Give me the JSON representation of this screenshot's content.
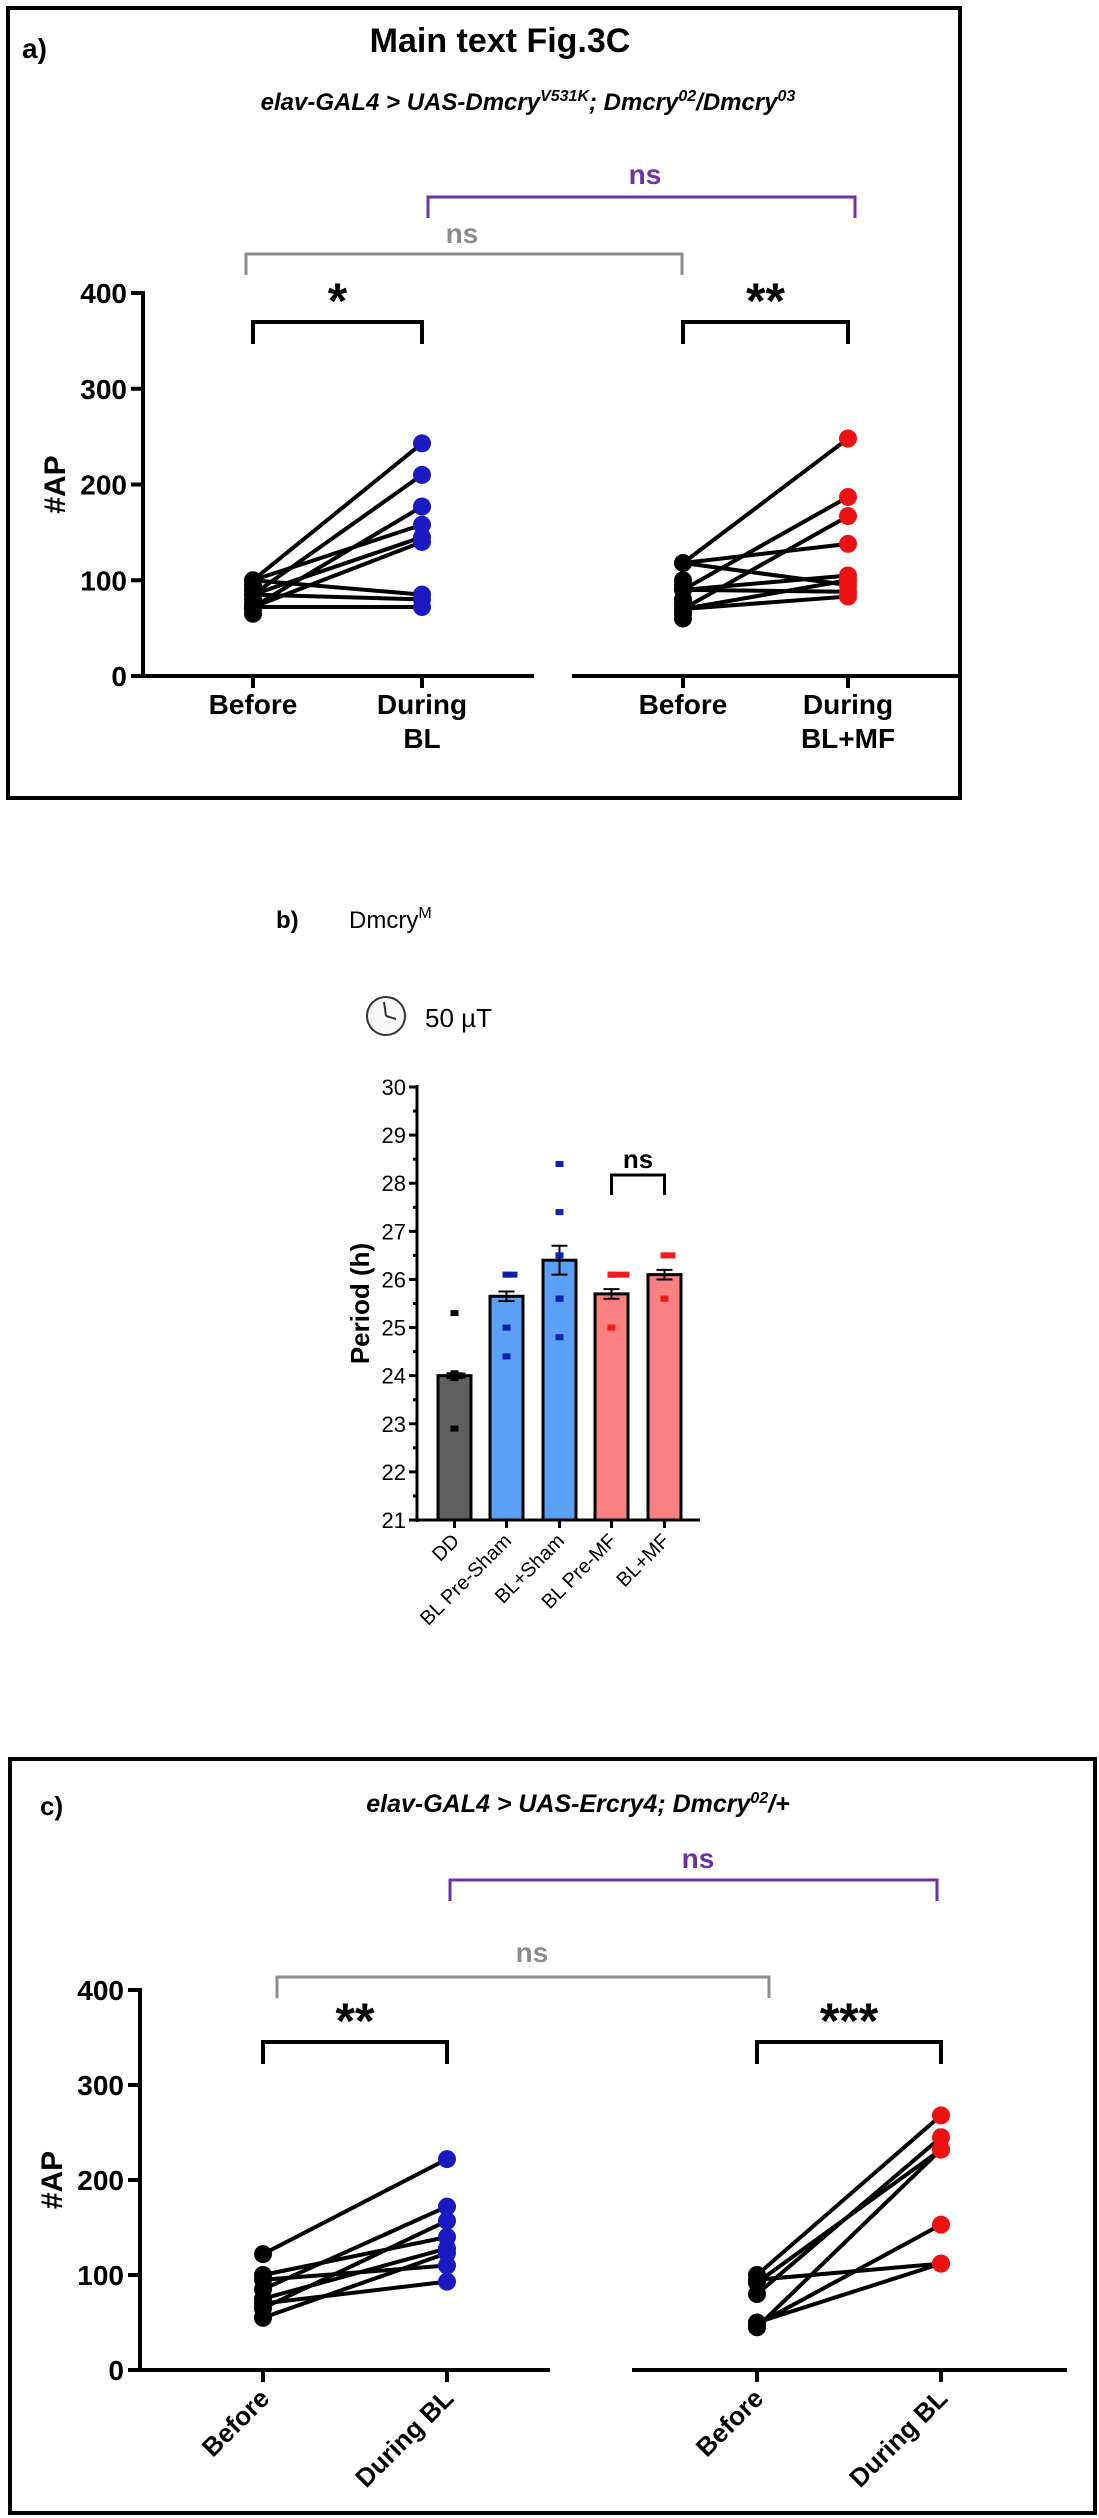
{
  "panels": {
    "a": {
      "label": "a)",
      "title": "Main text Fig.3C",
      "genotype": {
        "p1": "elav-GAL4 > UAS-Dmcry",
        "sup1": "V531K",
        "p2": "; Dmcry",
        "sup2": "02",
        "p3": "/Dmcry",
        "sup3": "03"
      }
    },
    "b": {
      "label": "b)",
      "genotype": {
        "base": "Dmcry",
        "sup": "M"
      },
      "condition": "50 µT",
      "condition_icon": "clock-icon"
    },
    "c": {
      "label": "c)",
      "genotype": {
        "p1": "elav-GAL4 > UAS-Ercry4; Dmcry",
        "sup1": "02",
        "p2": "/+"
      }
    }
  },
  "colors": {
    "before": "#000000",
    "during_bl": "#1a1ac0",
    "during_mf": "#ee1111",
    "ns_purple": "#7030a0",
    "ns_gray": "#8c8c8c",
    "bar_dd": "#5f5f5f",
    "bar_sham": "#5aa0f5",
    "bar_mf": "#f98080",
    "dot_sham": "#1020b0",
    "dot_mf": "#ee1c1c"
  },
  "chart_data": [
    {
      "id": "a",
      "type": "scatter",
      "title": "Main text Fig.3C",
      "subtitle": "elav-GAL4 > UAS-Dmcry^V531K; Dmcry^02/Dmcry^03",
      "ylabel": "#AP",
      "ylim": [
        0,
        400
      ],
      "yticks": [
        0,
        100,
        200,
        300,
        400
      ],
      "groups": [
        {
          "categories": [
            "Before",
            "During\nBL"
          ],
          "before": [
            100,
            95,
            90,
            85,
            80,
            75,
            72,
            70,
            65
          ],
          "during": [
            243,
            210,
            177,
            158,
            145,
            140,
            85,
            80,
            72
          ],
          "significance": "*"
        },
        {
          "categories": [
            "Before",
            "During\nBL+MF"
          ],
          "before": [
            118,
            100,
            95,
            90,
            80,
            75,
            70,
            65,
            60
          ],
          "during": [
            248,
            187,
            167,
            138,
            105,
            100,
            95,
            88,
            83
          ],
          "significance": "**"
        }
      ],
      "comparisons": [
        {
          "label": "ns",
          "color": "gray",
          "between": [
            "Before (BL)",
            "Before (BL+MF)"
          ]
        },
        {
          "label": "ns",
          "color": "purple",
          "between": [
            "During BL",
            "During BL+MF"
          ]
        }
      ]
    },
    {
      "id": "b",
      "type": "bar",
      "title": "Dmcry^M",
      "subtitle": "50 µT",
      "ylabel": "Period (h)",
      "ylim": [
        21,
        30
      ],
      "yticks": [
        21,
        22,
        23,
        24,
        25,
        26,
        27,
        28,
        29,
        30
      ],
      "categories": [
        "DD",
        "BL Pre-Sham",
        "BL+Sham",
        "BL Pre-MF",
        "BL+MF"
      ],
      "values": [
        24.0,
        25.65,
        26.4,
        25.7,
        26.1
      ],
      "sem": [
        0.05,
        0.1,
        0.3,
        0.1,
        0.1
      ],
      "points": [
        [
          25.3,
          24.05,
          24.0,
          24.0,
          24.0,
          23.95,
          22.9
        ],
        [
          26.1,
          26.1,
          26.1,
          25.0,
          25.0,
          24.4
        ],
        [
          28.4,
          27.4,
          26.5,
          26.5,
          25.6,
          25.6,
          24.8
        ],
        [
          26.1,
          26.1,
          26.1,
          26.1,
          25.0,
          25.0
        ],
        [
          26.5,
          26.5,
          26.5,
          25.6,
          25.6
        ]
      ],
      "significance": [
        {
          "between": [
            "BL Pre-MF",
            "BL+MF"
          ],
          "label": "ns"
        }
      ]
    },
    {
      "id": "c",
      "type": "scatter",
      "subtitle": "elav-GAL4 > UAS-Ercry4; Dmcry^02/+",
      "ylabel": "#AP",
      "ylim": [
        0,
        400
      ],
      "yticks": [
        0,
        100,
        200,
        300,
        400
      ],
      "groups": [
        {
          "categories": [
            "Before",
            "During BL"
          ],
          "before": [
            122,
            100,
            95,
            85,
            75,
            70,
            65,
            55
          ],
          "during": [
            222,
            172,
            157,
            140,
            128,
            123,
            110,
            93
          ],
          "significance": "**"
        },
        {
          "categories": [
            "Before",
            "During BL"
          ],
          "before": [
            100,
            95,
            92,
            80,
            50,
            48,
            45
          ],
          "during": [
            268,
            245,
            232,
            232,
            153,
            112,
            112
          ],
          "significance": "***"
        }
      ],
      "comparisons": [
        {
          "label": "ns",
          "color": "gray",
          "between": [
            "Before (left)",
            "Before (right)"
          ]
        },
        {
          "label": "ns",
          "color": "purple",
          "between": [
            "During BL (left)",
            "During BL (right)"
          ]
        }
      ]
    }
  ]
}
